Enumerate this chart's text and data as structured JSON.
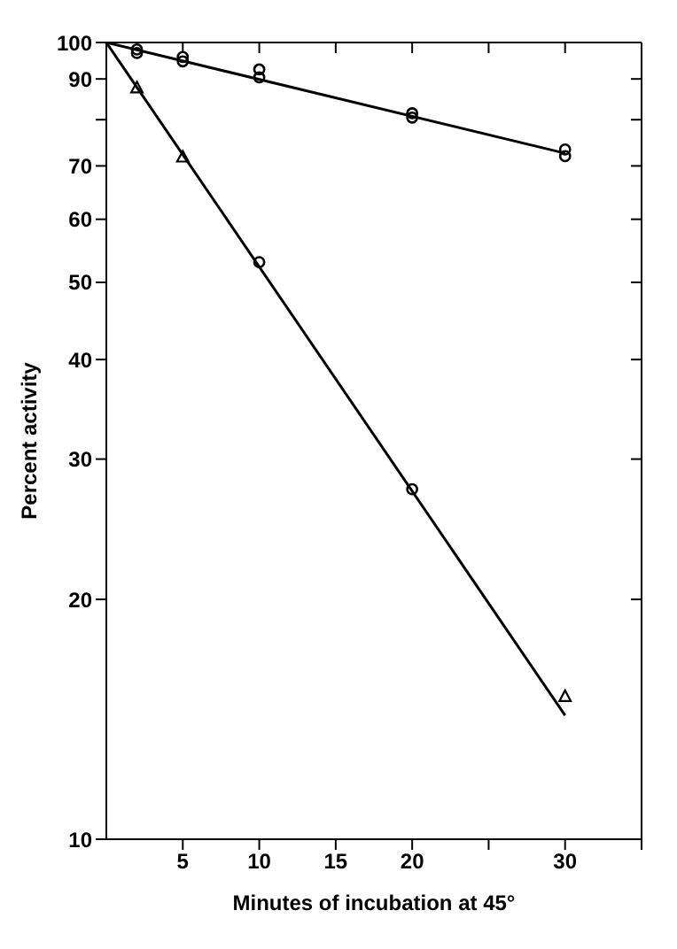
{
  "chart_data": {
    "type": "scatter",
    "xlabel": "Minutes of incubation at 45°",
    "ylabel": "Percent activity",
    "log": "y",
    "xlim": [
      0,
      35
    ],
    "xticks": [
      5,
      10,
      15,
      20,
      {
        "value": 25,
        "label": null
      },
      30,
      {
        "value": 35,
        "label": null
      }
    ],
    "ylim": [
      10,
      100
    ],
    "yticks": [
      10,
      20,
      30,
      40,
      50,
      60,
      70,
      {
        "value": 80,
        "label": null
      },
      90,
      100
    ],
    "grid": false,
    "series": [
      {
        "marker": "circle",
        "color": "#000000",
        "x": [
          2,
          5,
          10,
          20,
          30
        ],
        "values": [
          98,
          95.9,
          90.4,
          81.5,
          73.4
        ]
      },
      {
        "marker": "circle",
        "color": "#000000",
        "x": [
          2,
          5,
          10,
          20,
          30
        ],
        "values": [
          97,
          94.7,
          92.5,
          80.5,
          72
        ]
      },
      {
        "marker": "circle",
        "color": "#000000",
        "x": [
          10,
          20
        ],
        "values": [
          53,
          27.5
        ]
      },
      {
        "marker": "triangle",
        "color": "#000000",
        "x": [
          2,
          5,
          30
        ],
        "values": [
          87.7,
          71.8,
          15.1
        ]
      },
      {
        "type": "line",
        "marker": "none",
        "color": "#000000",
        "x": [
          0,
          30
        ],
        "values": [
          100,
          72.6
        ]
      },
      {
        "type": "line",
        "marker": "none",
        "color": "#000000",
        "x": [
          0,
          30
        ],
        "values": [
          100,
          14.3
        ]
      }
    ]
  }
}
